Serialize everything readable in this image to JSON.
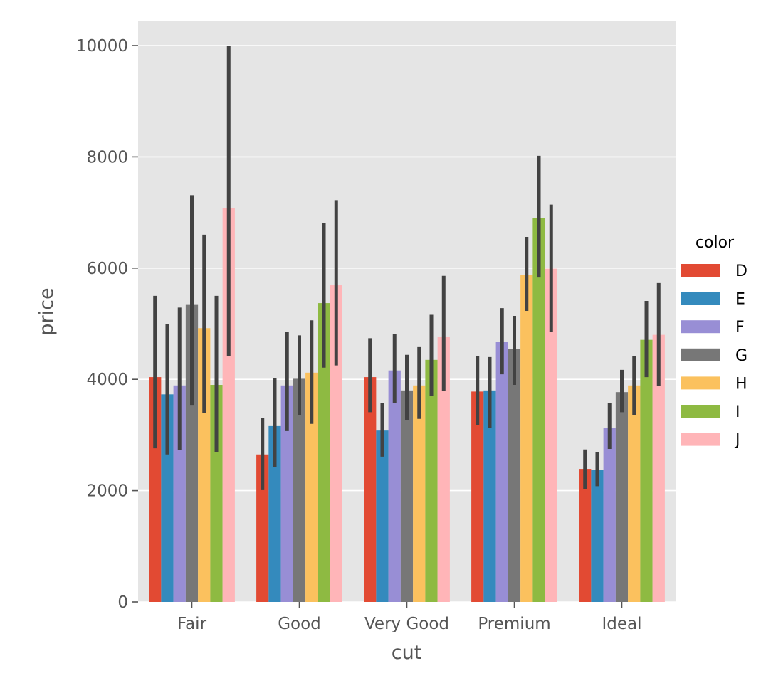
{
  "chart_data": {
    "type": "bar",
    "xlabel": "cut",
    "ylabel": "price",
    "categories": [
      "Fair",
      "Good",
      "Very Good",
      "Premium",
      "Ideal"
    ],
    "ylim": [
      0,
      10450
    ],
    "yticks": [
      0,
      2000,
      4000,
      6000,
      8000,
      10000
    ],
    "grid": true,
    "error_bars": true,
    "legend": {
      "title": "color",
      "placement": "right"
    },
    "series": [
      {
        "name": "D",
        "color": "#E24A33",
        "values": [
          4040,
          2650,
          4040,
          3780,
          2390
        ],
        "ci_low": [
          2760,
          2010,
          3410,
          3180,
          2030
        ],
        "ci_high": [
          5500,
          3300,
          4740,
          4420,
          2740
        ]
      },
      {
        "name": "E",
        "color": "#348ABD",
        "values": [
          3730,
          3160,
          3080,
          3800,
          2370
        ],
        "ci_low": [
          2650,
          2420,
          2610,
          3130,
          2080
        ],
        "ci_high": [
          5000,
          4020,
          3580,
          4400,
          2690
        ]
      },
      {
        "name": "F",
        "color": "#988ED5",
        "values": [
          3890,
          3890,
          4160,
          4680,
          3130
        ],
        "ci_low": [
          2730,
          3070,
          3580,
          4090,
          2750
        ],
        "ci_high": [
          5290,
          4860,
          4810,
          5280,
          3570
        ]
      },
      {
        "name": "G",
        "color": "#777777",
        "values": [
          5350,
          4010,
          3800,
          4550,
          3770
        ],
        "ci_low": [
          3540,
          3360,
          3270,
          3900,
          3410
        ],
        "ci_high": [
          7310,
          4790,
          4440,
          5140,
          4170
        ]
      },
      {
        "name": "H",
        "color": "#FBC15E",
        "values": [
          4920,
          4120,
          3890,
          5880,
          3890
        ],
        "ci_low": [
          3390,
          3200,
          3290,
          5230,
          3360
        ],
        "ci_high": [
          6600,
          5060,
          4580,
          6560,
          4420
        ]
      },
      {
        "name": "I",
        "color": "#8EBA42",
        "values": [
          3900,
          5370,
          4350,
          6900,
          4710
        ],
        "ci_low": [
          2690,
          4210,
          3700,
          5830,
          4040
        ],
        "ci_high": [
          5500,
          6810,
          5160,
          8020,
          5410
        ]
      },
      {
        "name": "J",
        "color": "#FFB5B8",
        "values": [
          7080,
          5690,
          4770,
          5990,
          4800
        ],
        "ci_low": [
          4420,
          4250,
          3790,
          4860,
          3880
        ],
        "ci_high": [
          10000,
          7220,
          5860,
          7140,
          5730
        ]
      }
    ]
  }
}
